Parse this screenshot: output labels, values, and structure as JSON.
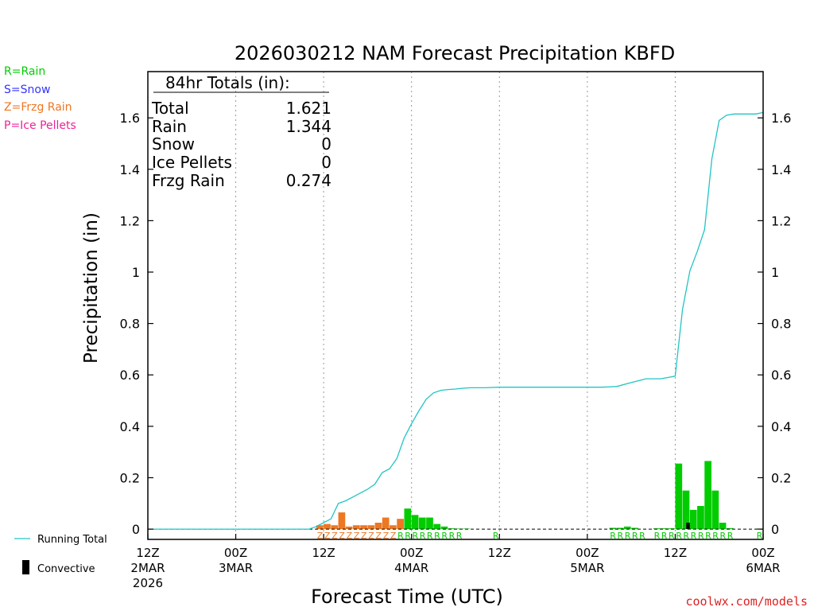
{
  "colors": {
    "rain": "#00cc00",
    "snow": "#3333ff",
    "frzg": "#ee7722",
    "ice": "#ee2299",
    "running": "#22c4c4",
    "convective": "#000000",
    "grid": "#999999",
    "credit": "#dd2222"
  },
  "ptype_legend": [
    {
      "label": "R=Rain",
      "color": "#00cc00"
    },
    {
      "label": "S=Snow",
      "color": "#3333ff"
    },
    {
      "label": "Z=Frzg Rain",
      "color": "#ee7722"
    },
    {
      "label": "P=Ice Pellets",
      "color": "#ee2299"
    }
  ],
  "series_legend": {
    "running_total": "Running Total",
    "convective": "Convective"
  },
  "totals_box": {
    "title": "84hr Totals (in):",
    "rows": [
      {
        "label": "Total",
        "value": "1.621"
      },
      {
        "label": "Rain",
        "value": "1.344"
      },
      {
        "label": "Snow",
        "value": "0"
      },
      {
        "label": "Ice Pellets",
        "value": "0"
      },
      {
        "label": "Frzg Rain",
        "value": "0.274"
      }
    ]
  },
  "credit": "coolwx.com/models",
  "chart_data": {
    "type": "bar",
    "title": "2026030212 NAM Forecast Precipitation KBFD",
    "xlabel": "Forecast Time (UTC)",
    "ylabel": "Precipitation (in)",
    "xlim": [
      0,
      84
    ],
    "ylim": [
      -0.04,
      1.78
    ],
    "yticks": [
      0,
      0.2,
      0.4,
      0.6,
      0.8,
      1,
      1.2,
      1.4,
      1.6
    ],
    "ytick_labels": [
      "0",
      "0.2",
      "0.4",
      "0.6",
      "0.8",
      "1",
      "1.2",
      "1.4",
      "1.6"
    ],
    "xticks": [
      {
        "hour": 0,
        "lines": [
          "12Z",
          "2MAR",
          "2026"
        ]
      },
      {
        "hour": 12,
        "lines": [
          "00Z",
          "3MAR"
        ]
      },
      {
        "hour": 24,
        "lines": [
          "12Z"
        ]
      },
      {
        "hour": 36,
        "lines": [
          "00Z",
          "4MAR"
        ]
      },
      {
        "hour": 48,
        "lines": [
          "12Z"
        ]
      },
      {
        "hour": 60,
        "lines": [
          "00Z",
          "5MAR"
        ]
      },
      {
        "hour": 72,
        "lines": [
          "12Z"
        ]
      },
      {
        "hour": 84,
        "lines": [
          "00Z",
          "6MAR"
        ]
      }
    ],
    "grid": true,
    "bars": [
      {
        "start": 23,
        "end": 24,
        "value": 0.015,
        "type": "Z"
      },
      {
        "start": 24,
        "end": 25,
        "value": 0.02,
        "type": "Z"
      },
      {
        "start": 25,
        "end": 26,
        "value": 0.015,
        "type": "Z"
      },
      {
        "start": 26,
        "end": 27,
        "value": 0.065,
        "type": "Z"
      },
      {
        "start": 27,
        "end": 28,
        "value": 0.01,
        "type": "Z"
      },
      {
        "start": 28,
        "end": 29,
        "value": 0.015,
        "type": "Z"
      },
      {
        "start": 29,
        "end": 30,
        "value": 0.015,
        "type": "Z"
      },
      {
        "start": 30,
        "end": 31,
        "value": 0.015,
        "type": "Z"
      },
      {
        "start": 31,
        "end": 32,
        "value": 0.025,
        "type": "Z"
      },
      {
        "start": 32,
        "end": 33,
        "value": 0.045,
        "type": "Z"
      },
      {
        "start": 33,
        "end": 34,
        "value": 0.015,
        "type": "Z"
      },
      {
        "start": 34,
        "end": 35,
        "value": 0.04,
        "type": "Z"
      },
      {
        "start": 35,
        "end": 36,
        "value": 0.08,
        "type": "R"
      },
      {
        "start": 36,
        "end": 37,
        "value": 0.055,
        "type": "R"
      },
      {
        "start": 37,
        "end": 38,
        "value": 0.045,
        "type": "R"
      },
      {
        "start": 38,
        "end": 39,
        "value": 0.045,
        "type": "R"
      },
      {
        "start": 39,
        "end": 40,
        "value": 0.02,
        "type": "R"
      },
      {
        "start": 40,
        "end": 41,
        "value": 0.01,
        "type": "R"
      },
      {
        "start": 41,
        "end": 42,
        "value": 0.003,
        "type": "R"
      },
      {
        "start": 42,
        "end": 43,
        "value": 0.002,
        "type": "R"
      },
      {
        "start": 43,
        "end": 44,
        "value": 0.002,
        "type": "R"
      },
      {
        "start": 63,
        "end": 64,
        "value": 0.005,
        "type": "R"
      },
      {
        "start": 64,
        "end": 65,
        "value": 0.005,
        "type": "R"
      },
      {
        "start": 65,
        "end": 66,
        "value": 0.01,
        "type": "R"
      },
      {
        "start": 66,
        "end": 67,
        "value": 0.005,
        "type": "R"
      },
      {
        "start": 69,
        "end": 70,
        "value": 0.003,
        "type": "R"
      },
      {
        "start": 70,
        "end": 71,
        "value": 0.003,
        "type": "R"
      },
      {
        "start": 71,
        "end": 72,
        "value": 0.003,
        "type": "R"
      },
      {
        "start": 72,
        "end": 73,
        "value": 0.255,
        "type": "R"
      },
      {
        "start": 73,
        "end": 74,
        "value": 0.15,
        "type": "R"
      },
      {
        "start": 74,
        "end": 75,
        "value": 0.075,
        "type": "R"
      },
      {
        "start": 75,
        "end": 76,
        "value": 0.09,
        "type": "R"
      },
      {
        "start": 76,
        "end": 77,
        "value": 0.265,
        "type": "R"
      },
      {
        "start": 77,
        "end": 78,
        "value": 0.15,
        "type": "R"
      },
      {
        "start": 78,
        "end": 79,
        "value": 0.025,
        "type": "R"
      },
      {
        "start": 79,
        "end": 80,
        "value": 0.004,
        "type": "R"
      },
      {
        "start": 83,
        "end": 84,
        "value": 0.002,
        "type": "R"
      }
    ],
    "convective": [
      {
        "start": 73.5,
        "end": 74,
        "value": 0.025
      }
    ],
    "running_total": {
      "x": [
        0,
        22,
        23,
        24,
        25,
        26,
        27,
        28,
        29,
        30,
        31,
        32,
        33,
        34,
        35,
        36,
        37,
        38,
        39,
        40,
        41,
        42,
        43,
        44,
        46,
        48,
        52,
        56,
        60,
        62,
        64,
        66,
        68,
        70,
        71,
        72,
        73,
        74,
        75,
        76,
        77,
        78,
        79,
        80,
        82,
        83,
        84
      ],
      "values": [
        0,
        0,
        0.01,
        0.025,
        0.04,
        0.1,
        0.11,
        0.125,
        0.14,
        0.155,
        0.175,
        0.22,
        0.235,
        0.275,
        0.355,
        0.41,
        0.46,
        0.505,
        0.53,
        0.54,
        0.543,
        0.545,
        0.548,
        0.55,
        0.55,
        0.552,
        0.552,
        0.552,
        0.552,
        0.552,
        0.555,
        0.57,
        0.585,
        0.585,
        0.59,
        0.595,
        0.855,
        1.005,
        1.08,
        1.165,
        1.44,
        1.59,
        1.61,
        1.615,
        1.615,
        1.615,
        1.621
      ]
    },
    "ptype_markers": [
      {
        "hour": 23.5,
        "code": "Z"
      },
      {
        "hour": 24.5,
        "code": "Z"
      },
      {
        "hour": 25.5,
        "code": "Z"
      },
      {
        "hour": 26.5,
        "code": "Z"
      },
      {
        "hour": 27.5,
        "code": "Z"
      },
      {
        "hour": 28.5,
        "code": "Z"
      },
      {
        "hour": 29.5,
        "code": "Z"
      },
      {
        "hour": 30.5,
        "code": "Z"
      },
      {
        "hour": 31.5,
        "code": "Z"
      },
      {
        "hour": 32.5,
        "code": "Z"
      },
      {
        "hour": 33.5,
        "code": "Z"
      },
      {
        "hour": 34.5,
        "code": "R"
      },
      {
        "hour": 35.5,
        "code": "R"
      },
      {
        "hour": 36.5,
        "code": "R"
      },
      {
        "hour": 37.5,
        "code": "R"
      },
      {
        "hour": 38.5,
        "code": "R"
      },
      {
        "hour": 39.5,
        "code": "R"
      },
      {
        "hour": 40.5,
        "code": "R"
      },
      {
        "hour": 41.5,
        "code": "R"
      },
      {
        "hour": 42.5,
        "code": "R"
      },
      {
        "hour": 47.5,
        "code": "R"
      },
      {
        "hour": 63.5,
        "code": "R"
      },
      {
        "hour": 64.5,
        "code": "R"
      },
      {
        "hour": 65.5,
        "code": "R"
      },
      {
        "hour": 66.5,
        "code": "R"
      },
      {
        "hour": 67.5,
        "code": "R"
      },
      {
        "hour": 69.5,
        "code": "R"
      },
      {
        "hour": 70.5,
        "code": "R"
      },
      {
        "hour": 71.5,
        "code": "R"
      },
      {
        "hour": 72.5,
        "code": "R"
      },
      {
        "hour": 73.5,
        "code": "R"
      },
      {
        "hour": 74.5,
        "code": "R"
      },
      {
        "hour": 75.5,
        "code": "R"
      },
      {
        "hour": 76.5,
        "code": "R"
      },
      {
        "hour": 77.5,
        "code": "R"
      },
      {
        "hour": 78.5,
        "code": "R"
      },
      {
        "hour": 79.5,
        "code": "R"
      },
      {
        "hour": 83.5,
        "code": "R"
      }
    ]
  }
}
